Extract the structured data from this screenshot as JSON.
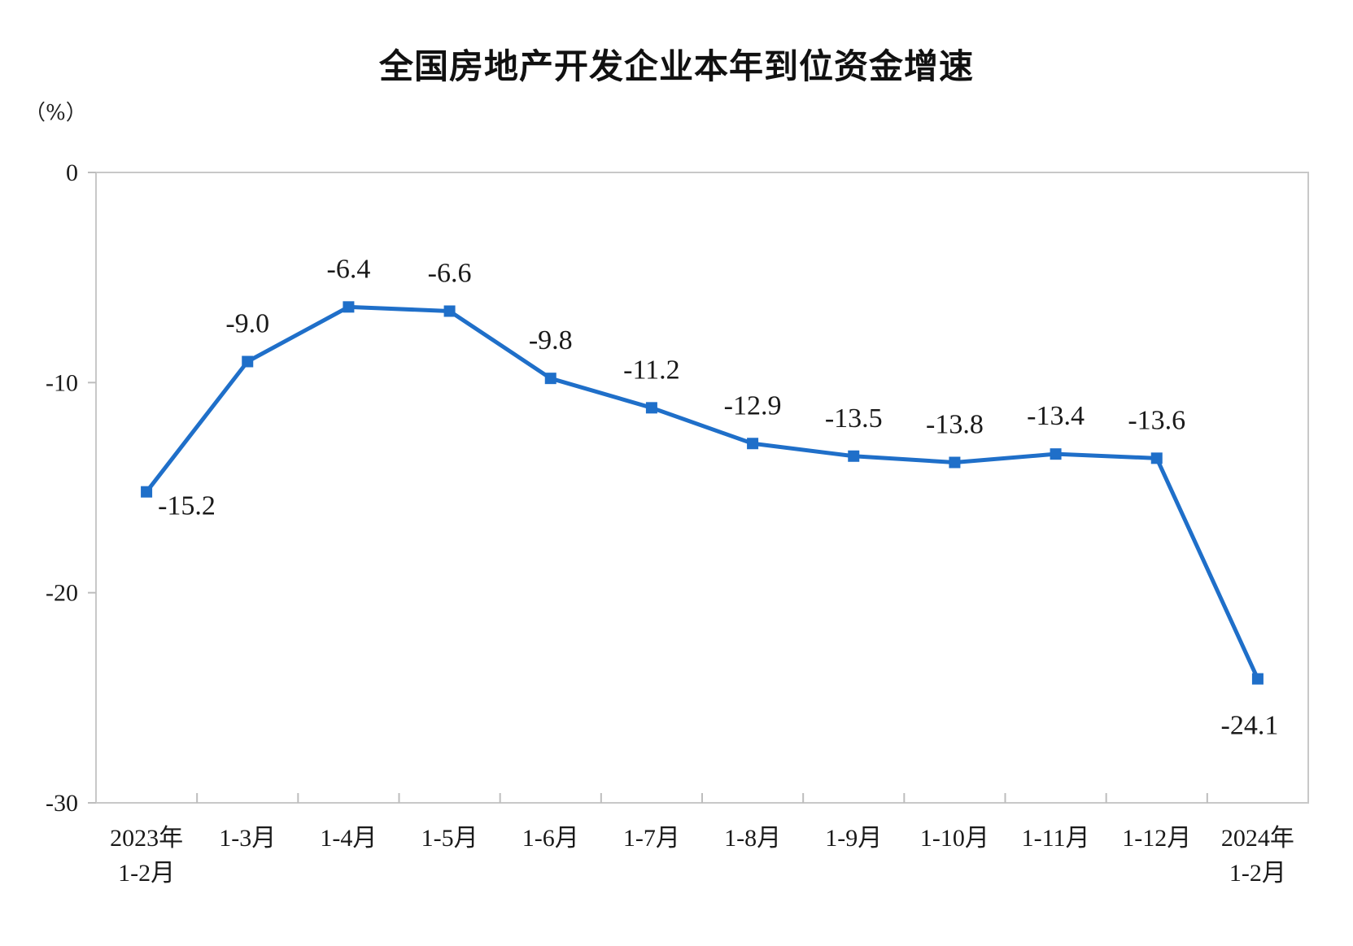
{
  "chart_data": {
    "type": "line",
    "title": "全国房地产开发企业本年到位资金增速",
    "unit": "（%）",
    "categories": [
      [
        "2023年",
        "1-2月"
      ],
      [
        "1-3月"
      ],
      [
        "1-4月"
      ],
      [
        "1-5月"
      ],
      [
        "1-6月"
      ],
      [
        "1-7月"
      ],
      [
        "1-8月"
      ],
      [
        "1-9月"
      ],
      [
        "1-10月"
      ],
      [
        "1-11月"
      ],
      [
        "1-12月"
      ],
      [
        "2024年",
        "1-2月"
      ]
    ],
    "values": [
      -15.2,
      -9.0,
      -6.4,
      -6.6,
      -9.8,
      -11.2,
      -12.9,
      -13.5,
      -13.8,
      -13.4,
      -13.6,
      -24.1
    ],
    "value_labels": [
      "-15.2",
      "-9.0",
      "-6.4",
      "-6.6",
      "-9.8",
      "-11.2",
      "-12.9",
      "-13.5",
      "-13.8",
      "-13.4",
      "-13.6",
      "-24.1"
    ],
    "yticks": [
      0,
      -10,
      -20,
      -30
    ],
    "ytick_labels": [
      "0",
      "-10",
      "-20",
      "-30"
    ],
    "ylim": [
      -30,
      0
    ],
    "grid": false,
    "line_color": "#1f6fc9"
  }
}
